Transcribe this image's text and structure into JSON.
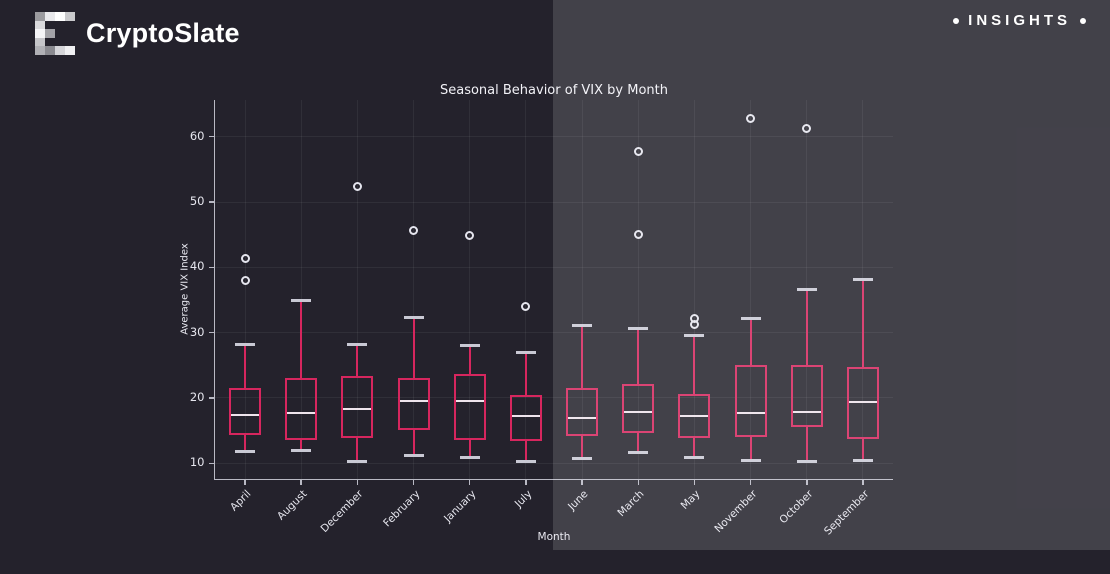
{
  "header": {
    "brand": "CryptoSlate",
    "insights_label": "INSIGHTS",
    "bullet": "•"
  },
  "chart_data": {
    "type": "boxplot",
    "title": "Seasonal Behavior of VIX by Month",
    "xlabel": "Month",
    "ylabel": "Average VIX Index",
    "ylim": [
      8,
      66
    ],
    "yticks": [
      10,
      20,
      30,
      40,
      50,
      60
    ],
    "grid": true,
    "legend": "none",
    "categories": [
      "April",
      "August",
      "December",
      "February",
      "January",
      "July",
      "June",
      "March",
      "May",
      "November",
      "October",
      "September"
    ],
    "series": [
      {
        "month": "April",
        "whislo": 11.8,
        "q1": 14.3,
        "med": 17.4,
        "q3": 21.5,
        "whishi": 28.2,
        "outliers": [
          41.3,
          38.0
        ]
      },
      {
        "month": "August",
        "whislo": 11.9,
        "q1": 13.5,
        "med": 17.7,
        "q3": 23.1,
        "whishi": 35.0,
        "outliers": []
      },
      {
        "month": "December",
        "whislo": 10.3,
        "q1": 13.8,
        "med": 18.3,
        "q3": 23.3,
        "whishi": 28.2,
        "outliers": [
          52.4
        ]
      },
      {
        "month": "February",
        "whislo": 11.2,
        "q1": 15.1,
        "med": 19.6,
        "q3": 23.0,
        "whishi": 32.3,
        "outliers": [
          45.6
        ]
      },
      {
        "month": "January",
        "whislo": 10.9,
        "q1": 13.5,
        "med": 19.5,
        "q3": 23.7,
        "whishi": 28.0,
        "outliers": [
          44.8
        ]
      },
      {
        "month": "July",
        "whislo": 10.3,
        "q1": 13.4,
        "med": 17.2,
        "q3": 20.4,
        "whishi": 26.9,
        "outliers": [
          34.0
        ]
      },
      {
        "month": "June",
        "whislo": 10.8,
        "q1": 14.2,
        "med": 17.0,
        "q3": 21.6,
        "whishi": 31.1,
        "outliers": []
      },
      {
        "month": "March",
        "whislo": 11.7,
        "q1": 14.7,
        "med": 17.9,
        "q3": 22.1,
        "whishi": 30.7,
        "outliers": [
          57.8,
          45.0
        ]
      },
      {
        "month": "May",
        "whislo": 10.9,
        "q1": 13.9,
        "med": 17.3,
        "q3": 20.6,
        "whishi": 29.5,
        "outliers": [
          32.1,
          31.2
        ]
      },
      {
        "month": "November",
        "whislo": 10.5,
        "q1": 14.0,
        "med": 17.7,
        "q3": 25.0,
        "whishi": 32.1,
        "outliers": [
          62.8
        ]
      },
      {
        "month": "October",
        "whislo": 10.2,
        "q1": 15.6,
        "med": 17.9,
        "q3": 25.1,
        "whishi": 36.6,
        "outliers": [
          61.3
        ]
      },
      {
        "month": "September",
        "whislo": 10.4,
        "q1": 13.7,
        "med": 19.4,
        "q3": 24.8,
        "whishi": 38.2,
        "outliers": []
      }
    ]
  },
  "colors": {
    "background_left": "#24222c",
    "background_right": "#41404f",
    "box_stroke": "#d6265e",
    "median": "#eee4ec",
    "whisker_cap": "#c9c9d4",
    "axis": "#b9b9c4",
    "grid": "rgba(255,255,255,0.06)",
    "tick_text": "#e6e6ee",
    "outlier_ring": "#e5e5ee"
  }
}
